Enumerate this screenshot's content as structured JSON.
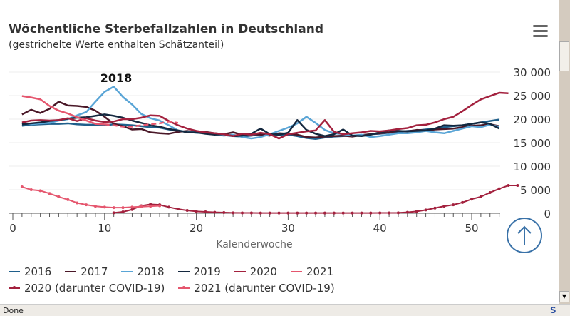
{
  "header": {
    "title": "Wöchentliche Sterbefallzahlen in Deutschland",
    "subtitle": "(gestrichelte Werte enthalten Schätzanteil)",
    "menu_icon": "hamburger-menu-icon"
  },
  "chart_data": {
    "type": "line",
    "title": "Wöchentliche Sterbefallzahlen in Deutschland",
    "subtitle": "(gestrichelte Werte enthalten Schätzanteil)",
    "xlabel": "Kalenderwoche",
    "ylabel": "",
    "xlim": [
      0,
      53
    ],
    "ylim": [
      0,
      30000
    ],
    "x_ticks": [
      "0",
      "10",
      "20",
      "30",
      "40",
      "50"
    ],
    "y_ticks": [
      "0",
      "5 000",
      "10 000",
      "15 000",
      "20 000",
      "25 000",
      "30 000"
    ],
    "grid": true,
    "legend_position": "bottom",
    "annotation": {
      "text": "2018",
      "x": 10,
      "y": 27000
    },
    "series": [
      {
        "name": "2016",
        "color": "#1f5f8b",
        "dashed_from": null,
        "markers": false,
        "values": [
          18600,
          18800,
          18900,
          19000,
          19000,
          19100,
          18900,
          18800,
          18800,
          18700,
          18900,
          18800,
          18700,
          18500,
          18300,
          18200,
          17800,
          17500,
          17300,
          17100,
          17000,
          16800,
          16600,
          16400,
          16300,
          16500,
          16800,
          16900,
          16600,
          16700,
          16400,
          16000,
          15800,
          16100,
          16300,
          16400,
          16500,
          16600,
          16800,
          16900,
          17100,
          17300,
          17500,
          17600,
          17800,
          18000,
          18300,
          18500,
          18700,
          19000,
          19300,
          19600,
          19900
        ]
      },
      {
        "name": "2017",
        "color": "#4a1828",
        "dashed_from": null,
        "markers": false,
        "values": [
          21000,
          22000,
          21300,
          22200,
          23700,
          22900,
          22800,
          22600,
          21800,
          20500,
          19000,
          18500,
          17800,
          17900,
          17200,
          17000,
          16900,
          17300,
          17500,
          17200,
          17300,
          17000,
          16800,
          17200,
          16700,
          16800,
          16700,
          16500,
          17000,
          16900,
          16700,
          16200,
          16100,
          16300,
          16400,
          16500,
          16300,
          16600,
          16800,
          17000,
          17200,
          17500,
          17400,
          17700,
          17600,
          17800,
          17900,
          18000,
          18300,
          18600,
          18700,
          18900,
          18500
        ]
      },
      {
        "name": "2018",
        "color": "#5aa5d6",
        "dashed_from": null,
        "markers": false,
        "values": [
          19200,
          18900,
          19100,
          19200,
          19700,
          20000,
          20800,
          21500,
          23700,
          25800,
          26900,
          24700,
          23100,
          21100,
          20200,
          19700,
          18700,
          17600,
          17300,
          17200,
          17100,
          16800,
          16500,
          16700,
          16200,
          15900,
          16200,
          16800,
          17500,
          18200,
          19100,
          20500,
          19200,
          17700,
          17000,
          16800,
          16500,
          16700,
          16200,
          16400,
          16700,
          17000,
          17000,
          17200,
          17500,
          17200,
          17000,
          17500,
          18000,
          18500,
          18300,
          18800,
          18400
        ]
      },
      {
        "name": "2019",
        "color": "#14283f",
        "dashed_from": null,
        "markers": false,
        "values": [
          18900,
          19100,
          19300,
          19600,
          19800,
          20100,
          20300,
          20400,
          20700,
          21000,
          20700,
          20300,
          19700,
          19200,
          18700,
          18400,
          17900,
          17600,
          17200,
          17200,
          16900,
          16700,
          16800,
          16400,
          16500,
          16900,
          18000,
          16800,
          16700,
          17100,
          19800,
          17700,
          16900,
          16400,
          16800,
          17800,
          16500,
          16400,
          16700,
          17200,
          17600,
          17500,
          17400,
          17500,
          17600,
          18000,
          18700,
          18600,
          18700,
          19000,
          19300,
          19000,
          18000
        ]
      },
      {
        "name": "2020",
        "color": "#a3213e",
        "dashed_from": null,
        "markers": false,
        "values": [
          19300,
          19700,
          19800,
          19700,
          19800,
          20200,
          19600,
          20200,
          19700,
          19400,
          19500,
          20000,
          20000,
          20300,
          20800,
          20700,
          19600,
          18700,
          18000,
          17500,
          17200,
          17000,
          16800,
          16400,
          16900,
          16700,
          17100,
          16800,
          15900,
          16800,
          17100,
          17400,
          17600,
          19800,
          17300,
          16800,
          17000,
          17200,
          17500,
          17400,
          17600,
          17900,
          18100,
          18700,
          18800,
          19300,
          20000,
          20500,
          21700,
          23000,
          24200,
          24900,
          25600,
          25500
        ]
      },
      {
        "name": "2021",
        "color": "#e5566e",
        "dashed_from": 10,
        "markers": false,
        "values": [
          24900,
          24600,
          24200,
          22800,
          21800,
          21200,
          20400,
          19700,
          19000,
          18900,
          18700,
          18400,
          18400,
          18700,
          18900,
          19100,
          19500,
          19200,
          null
        ]
      },
      {
        "name": "2020 (darunter COVID-19)",
        "color": "#a3213e",
        "dashed_from": null,
        "markers": true,
        "start_week": 11,
        "values": [
          100,
          300,
          800,
          1600,
          1900,
          1800,
          1300,
          900,
          600,
          400,
          300,
          200,
          150,
          100,
          80,
          70,
          60,
          60,
          60,
          60,
          60,
          60,
          60,
          60,
          60,
          60,
          60,
          60,
          60,
          70,
          80,
          100,
          200,
          400,
          700,
          1100,
          1500,
          1800,
          2300,
          3000,
          3500,
          4400,
          5200,
          5900,
          5900
        ]
      },
      {
        "name": "2021 (darunter COVID-19)",
        "color": "#e5566e",
        "dashed_from": null,
        "markers": true,
        "start_week": 1,
        "values": [
          5600,
          5000,
          4800,
          4200,
          3500,
          2900,
          2200,
          1800,
          1500,
          1300,
          1200,
          1200,
          1300,
          1400,
          1500,
          1600
        ]
      }
    ]
  },
  "buttons": {
    "back_to_top_icon": "arrow-up-icon"
  },
  "status": {
    "text": "Done"
  }
}
